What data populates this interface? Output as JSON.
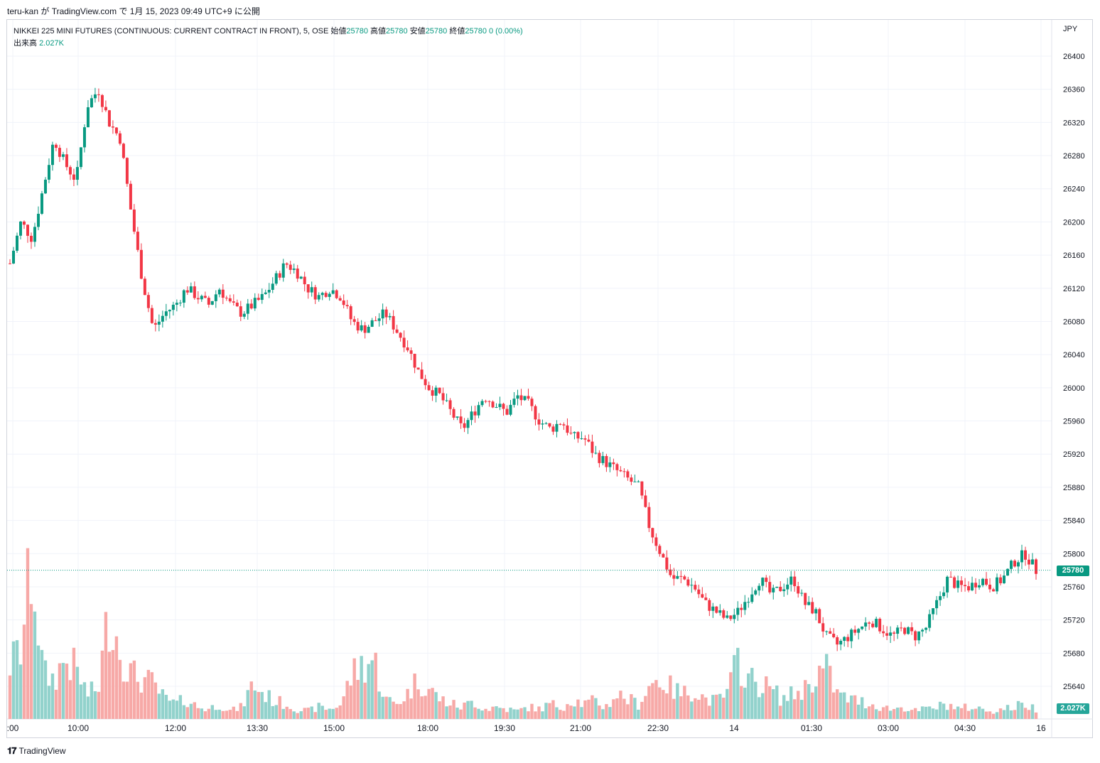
{
  "header": {
    "attribution": "teru-kan が TradingView.com で 1月 15, 2023 09:49 UTC+9 に公開"
  },
  "legend": {
    "symbol": "NIKKEI 225 MINI FUTURES (CONTINUOUS: CURRENT CONTRACT IN FRONT), 5, OSE",
    "open_label": "始値",
    "open": "25780",
    "high_label": "高値",
    "high": "25780",
    "low_label": "安値",
    "low": "25780",
    "close_label": "終値",
    "close": "25780",
    "change": "0 (0.00%)",
    "volume_label": "出来高",
    "volume": "2.027K"
  },
  "price_axis": {
    "unit": "JPY",
    "current_price": "25780",
    "current_volume": "2.027K"
  },
  "footer": {
    "brand": "TradingView"
  },
  "colors": {
    "up": "#089981",
    "down": "#f23645",
    "up_volume": "#92d2cc",
    "down_volume": "#f7a9a7",
    "grid": "#f0f3fa"
  },
  "chart_data": {
    "type": "candlestick",
    "interval": "5",
    "y_range": [
      25620,
      26420
    ],
    "y_ticks": [
      26400,
      26360,
      26320,
      26280,
      26240,
      26200,
      26160,
      26120,
      26080,
      26040,
      26000,
      25960,
      25920,
      25880,
      25840,
      25800,
      25760,
      25720,
      25680,
      25640
    ],
    "x_ticks": [
      ":00",
      "10:00",
      "12:00",
      "13:30",
      "15:00",
      "18:00",
      "19:30",
      "21:00",
      "22:30",
      "14",
      "01:30",
      "03:00",
      "04:30",
      "16"
    ],
    "last_price": 25780,
    "price_path": [
      26150,
      26200,
      26180,
      26240,
      26300,
      26270,
      26250,
      26340,
      26360,
      26320,
      26300,
      26210,
      26130,
      26070,
      26090,
      26100,
      26120,
      26110,
      26100,
      26120,
      26100,
      26090,
      26100,
      26110,
      26130,
      26150,
      26140,
      26120,
      26110,
      26120,
      26110,
      26080,
      26070,
      26080,
      26090,
      26070,
      26050,
      26020,
      26000,
      25990,
      25970,
      25950,
      25970,
      25990,
      25980,
      25970,
      25990,
      25980,
      25960,
      25950,
      25960,
      25940,
      25940,
      25920,
      25910,
      25900,
      25890,
      25880,
      25830,
      25800,
      25770,
      25770,
      25760,
      25740,
      25730,
      25720,
      25730,
      25750,
      25770,
      25750,
      25760,
      25770,
      25740,
      25730,
      25700,
      25690,
      25700,
      25710,
      25720,
      25710,
      25700,
      25710,
      25700,
      25710,
      25740,
      25770,
      25760,
      25760,
      25770,
      25760,
      25770,
      25790,
      25800,
      25780
    ],
    "volume_path": [
      55,
      70,
      160,
      45,
      40,
      60,
      50,
      25,
      30,
      110,
      70,
      45,
      40,
      35,
      20,
      15,
      20,
      12,
      10,
      15,
      8,
      12,
      35,
      25,
      18,
      15,
      10,
      8,
      12,
      10,
      15,
      45,
      55,
      60,
      20,
      15,
      25,
      40,
      30,
      20,
      15,
      12,
      18,
      10,
      12,
      10,
      8,
      12,
      10,
      15,
      12,
      20,
      15,
      18,
      12,
      25,
      20,
      15,
      35,
      40,
      30,
      25,
      30,
      20,
      18,
      25,
      60,
      40,
      35,
      30,
      20,
      25,
      30,
      45,
      50,
      25,
      20,
      18,
      15,
      12,
      10,
      12,
      8,
      10,
      12,
      15,
      10,
      12,
      10,
      8,
      10,
      12,
      15,
      10
    ]
  }
}
